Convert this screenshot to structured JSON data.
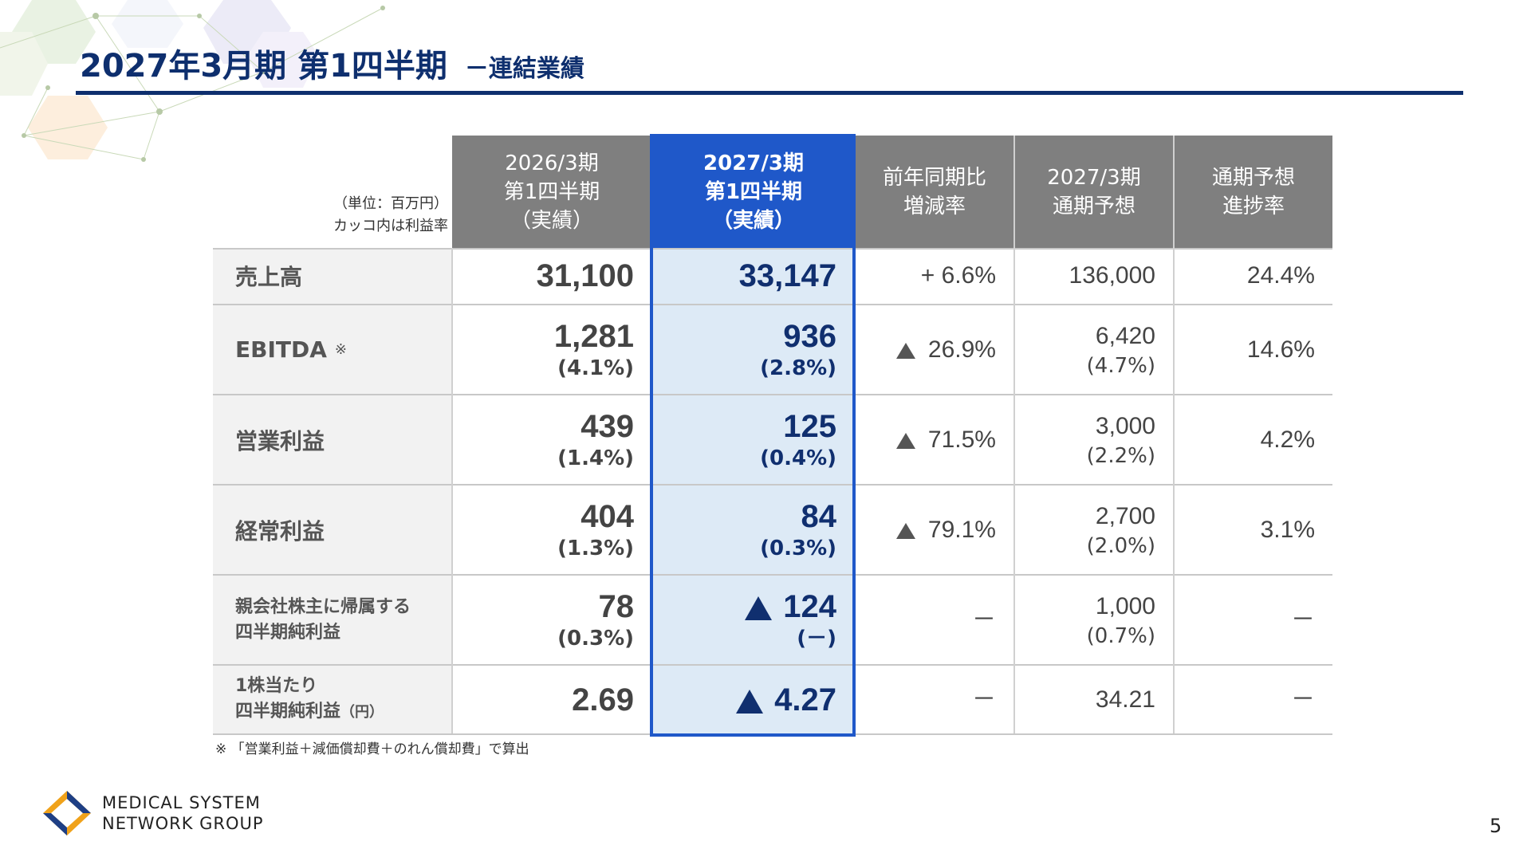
{
  "title": {
    "main": "2027年3月期 第1四半期",
    "sub": "－連結業績"
  },
  "unit_note": [
    "（単位：百万円）",
    "カッコ内は利益率"
  ],
  "columns": [
    {
      "lines": [
        "2026/3期",
        "第1四半期",
        "（実績）"
      ]
    },
    {
      "lines": [
        "2027/3期",
        "第1四半期",
        "（実績）"
      ]
    },
    {
      "lines": [
        "前年同期比",
        "増減率"
      ]
    },
    {
      "lines": [
        "2027/3期",
        "通期予想"
      ]
    },
    {
      "lines": [
        "通期予想",
        "進捗率"
      ]
    }
  ],
  "rows": [
    {
      "label": [
        "売上高"
      ],
      "prev": "31,100",
      "prev_pct": "",
      "cur": "33,147",
      "cur_pct": "",
      "cur_neg": false,
      "change": "+ 6.6%",
      "change_neg": false,
      "forecast": "136,000",
      "forecast_pct": "",
      "progress": "24.4%"
    },
    {
      "label": [
        "EBITDA"
      ],
      "mark": "※",
      "prev": "1,281",
      "prev_pct": "(4.1%)",
      "cur": "936",
      "cur_pct": "(2.8%)",
      "cur_neg": false,
      "change": "26.9%",
      "change_neg": true,
      "forecast": "6,420",
      "forecast_pct": "(4.7%)",
      "progress": "14.6%"
    },
    {
      "label": [
        "営業利益"
      ],
      "prev": "439",
      "prev_pct": "(1.4%)",
      "cur": "125",
      "cur_pct": "(0.4%)",
      "cur_neg": false,
      "change": "71.5%",
      "change_neg": true,
      "forecast": "3,000",
      "forecast_pct": "(2.2%)",
      "progress": "4.2%"
    },
    {
      "label": [
        "経常利益"
      ],
      "prev": "404",
      "prev_pct": "(1.3%)",
      "cur": "84",
      "cur_pct": "(0.3%)",
      "cur_neg": false,
      "change": "79.1%",
      "change_neg": true,
      "forecast": "2,700",
      "forecast_pct": "(2.0%)",
      "progress": "3.1%"
    },
    {
      "label": [
        "親会社株主に帰属する",
        "四半期純利益"
      ],
      "prev": "78",
      "prev_pct": "(0.3%)",
      "cur": "124",
      "cur_pct": "(－)",
      "cur_neg": true,
      "change": "－",
      "change_neg": false,
      "forecast": "1,000",
      "forecast_pct": "(0.7%)",
      "progress": "－"
    },
    {
      "label": [
        "1株当たり",
        "四半期純利益"
      ],
      "label_suffix": "（円）",
      "prev": "2.69",
      "prev_pct": "",
      "cur": "4.27",
      "cur_pct": "",
      "cur_neg": true,
      "change": "－",
      "change_neg": false,
      "forecast": "34.21",
      "forecast_pct": "",
      "progress": "－"
    }
  ],
  "footnote": "※ 「営業利益＋減価償却費＋のれん償却費」で算出",
  "logo": {
    "line1": "MEDICAL SYSTEM",
    "line2": "NETWORK GROUP"
  },
  "page_number": "5",
  "colors": {
    "navy": "#0e2f6e",
    "highlight": "#1f58c9",
    "highlight_bg": "#ddeaf6",
    "header_gray": "#7f7f7f"
  }
}
